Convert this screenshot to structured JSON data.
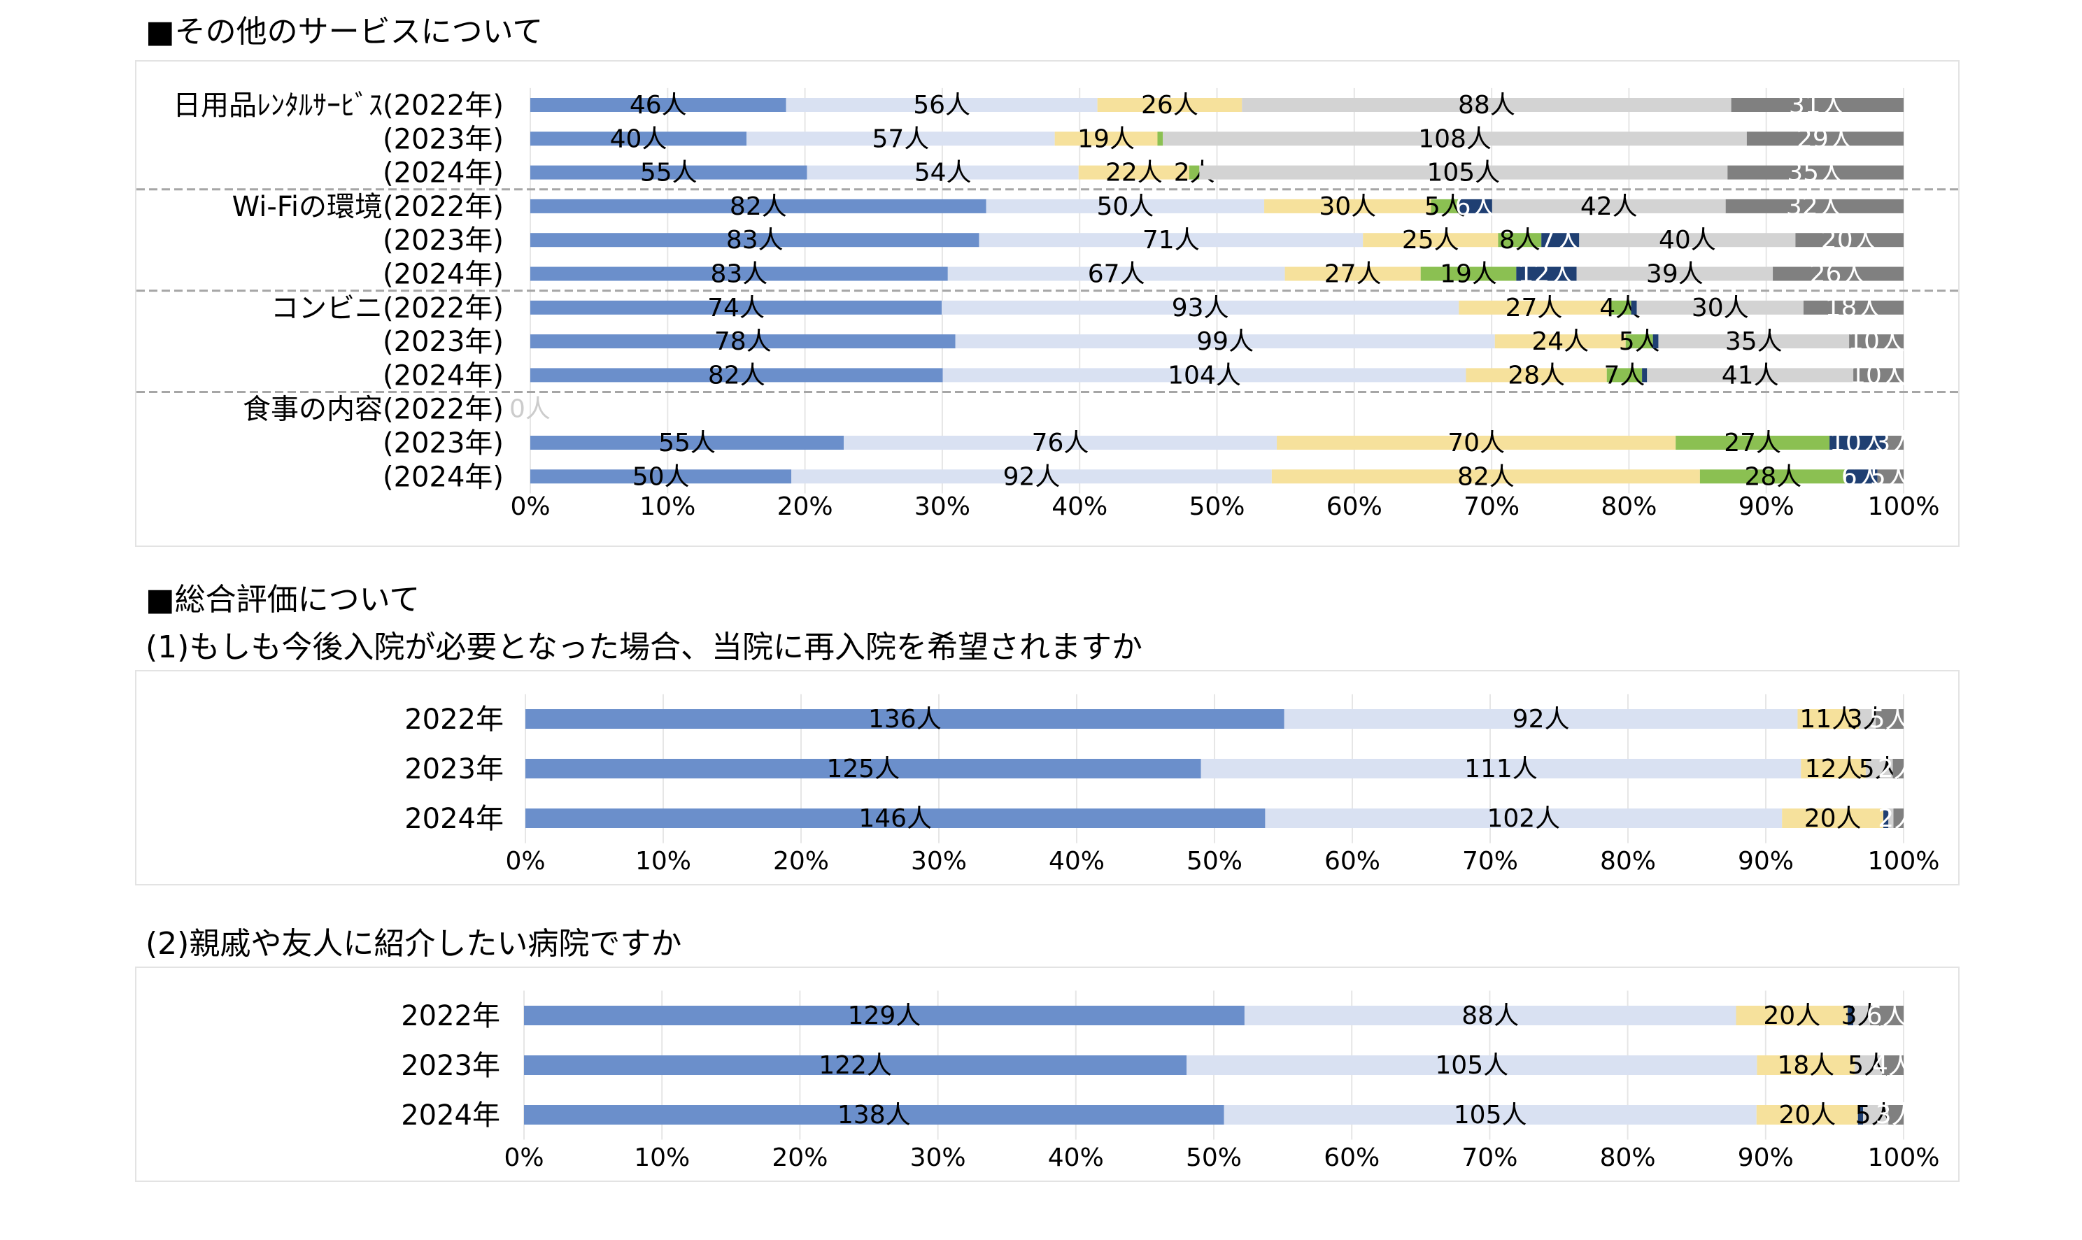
{
  "headings": {
    "services": "■その他のサービスについて",
    "overall": "■総合評価について",
    "q1": "(1)もしも今後入院が必要となった場合、当院に再入院を希望されますか",
    "q2": "(2)親戚や友人に紹介したい病院ですか"
  },
  "colors": [
    "#6b8fcb",
    "#d9e1f2",
    "#f6e19c",
    "#8bc052",
    "#1f3f72",
    "#d3d3d3",
    "#808080"
  ],
  "chart_data": [
    {
      "type": "bar",
      "orientation": "horizontal",
      "stacked": "percent",
      "title": "",
      "xlim": [
        0,
        100
      ],
      "x_ticks": [
        "0%",
        "10%",
        "20%",
        "30%",
        "40%",
        "50%",
        "60%",
        "70%",
        "80%",
        "90%",
        "100%"
      ],
      "grid": true,
      "categories": [
        "日用品ﾚﾝﾀﾙｻｰﾋﾞｽ(2022年)",
        "(2023年)",
        "(2024年)",
        "Wi-Fiの環境(2022年)",
        "(2023年)",
        "(2024年)",
        "コンビニ(2022年)",
        "(2023年)",
        "(2024年)",
        "食事の内容(2022年)",
        "(2023年)",
        "(2024年)"
      ],
      "groups_separated_after": [
        2,
        5,
        8
      ],
      "rows": [
        [
          46,
          56,
          26,
          0,
          0,
          88,
          31
        ],
        [
          40,
          57,
          19,
          1,
          0,
          108,
          29
        ],
        [
          55,
          54,
          22,
          2,
          0,
          105,
          35
        ],
        [
          82,
          50,
          30,
          5,
          6,
          42,
          32
        ],
        [
          83,
          71,
          25,
          8,
          7,
          40,
          20
        ],
        [
          83,
          67,
          27,
          19,
          12,
          39,
          26
        ],
        [
          74,
          93,
          27,
          4,
          1,
          30,
          18
        ],
        [
          78,
          99,
          24,
          5,
          1,
          35,
          10
        ],
        [
          82,
          104,
          28,
          7,
          1,
          41,
          10
        ],
        [
          0,
          0,
          0,
          0,
          0,
          0,
          0
        ],
        [
          55,
          76,
          70,
          27,
          10,
          0,
          3
        ],
        [
          50,
          92,
          82,
          28,
          6,
          0,
          5
        ]
      ]
    },
    {
      "type": "bar",
      "orientation": "horizontal",
      "stacked": "percent",
      "title": "",
      "xlim": [
        0,
        100
      ],
      "x_ticks": [
        "0%",
        "10%",
        "20%",
        "30%",
        "40%",
        "50%",
        "60%",
        "70%",
        "80%",
        "90%",
        "100%"
      ],
      "grid": true,
      "categories": [
        "2022年",
        "2023年",
        "2024年"
      ],
      "rows": [
        [
          136,
          92,
          11,
          0,
          0,
          3,
          5
        ],
        [
          125,
          111,
          12,
          0,
          0,
          5,
          2
        ],
        [
          146,
          102,
          20,
          0,
          1,
          1,
          2
        ]
      ]
    },
    {
      "type": "bar",
      "orientation": "horizontal",
      "stacked": "percent",
      "title": "",
      "xlim": [
        0,
        100
      ],
      "x_ticks": [
        "0%",
        "10%",
        "20%",
        "30%",
        "40%",
        "50%",
        "60%",
        "70%",
        "80%",
        "90%",
        "100%"
      ],
      "grid": true,
      "categories": [
        "2022年",
        "2023年",
        "2024年"
      ],
      "rows": [
        [
          129,
          88,
          20,
          0,
          1,
          3,
          6
        ],
        [
          122,
          105,
          18,
          0,
          0,
          5,
          4
        ],
        [
          138,
          105,
          20,
          0,
          1,
          5,
          3
        ]
      ]
    }
  ]
}
